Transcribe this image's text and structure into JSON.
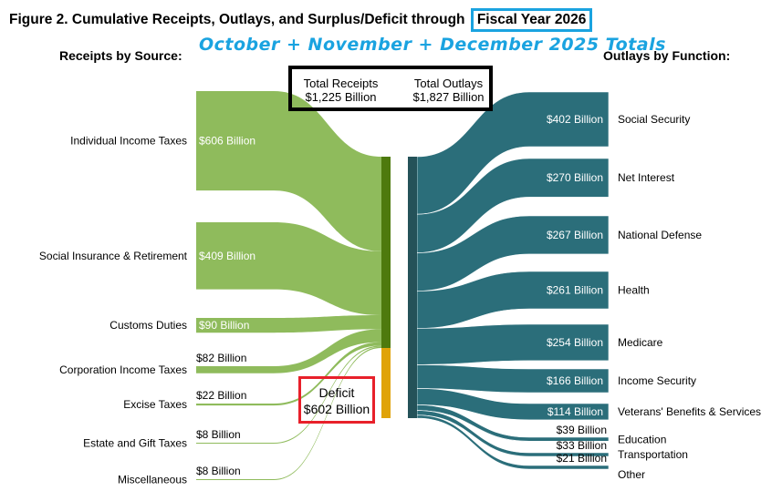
{
  "title": {
    "main": "Figure 2. Cumulative Receipts, Outlays, and Surplus/Deficit through",
    "highlight": "Fiscal Year 2026"
  },
  "subtitle": "October + November + December 2025 Totals",
  "receipts_heading": "Receipts by Source:",
  "outlays_heading": "Outlays by Function:",
  "totals": {
    "receipts_label": "Total Receipts",
    "receipts_value": "$1,225 Billion",
    "outlays_label": "Total Outlays",
    "outlays_value": "$1,827 Billion"
  },
  "deficit": {
    "label": "Deficit",
    "value": "$602 Billion"
  },
  "colors": {
    "receipts": "#8fbb5c",
    "receipts_bar": "#4e7a0e",
    "deficit": "#e0a30a",
    "outlays": "#2b6e7a",
    "outlays_bar": "#245259",
    "deficit_box": "#e8202a",
    "fy_box": "#1aa3e0"
  },
  "receipts": [
    {
      "name": "Individual Income Taxes",
      "value": 606,
      "label": "$606 Billion"
    },
    {
      "name": "Social Insurance & Retirement",
      "value": 409,
      "label": "$409 Billion"
    },
    {
      "name": "Customs Duties",
      "value": 90,
      "label": "$90 Billion"
    },
    {
      "name": "Corporation Income Taxes",
      "value": 82,
      "label": "$82 Billion"
    },
    {
      "name": "Excise Taxes",
      "value": 22,
      "label": "$22 Billion"
    },
    {
      "name": "Estate and Gift Taxes",
      "value": 8,
      "label": "$8 Billion"
    },
    {
      "name": "Miscellaneous",
      "value": 8,
      "label": "$8 Billion"
    }
  ],
  "outlays": [
    {
      "name": "Social Security",
      "value": 402,
      "label": "$402 Billion"
    },
    {
      "name": "Net Interest",
      "value": 270,
      "label": "$270 Billion"
    },
    {
      "name": "National Defense",
      "value": 267,
      "label": "$267 Billion"
    },
    {
      "name": "Health",
      "value": 261,
      "label": "$261 Billion"
    },
    {
      "name": "Medicare",
      "value": 254,
      "label": "$254 Billion"
    },
    {
      "name": "Income Security",
      "value": 166,
      "label": "$166 Billion"
    },
    {
      "name": "Veterans' Benefits & Services",
      "value": 114,
      "label": "$114 Billion"
    },
    {
      "name": "Education",
      "value": 39,
      "label": "$39 Billion"
    },
    {
      "name": "Transportation",
      "value": 33,
      "label": "$33 Billion"
    },
    {
      "name": "Other",
      "value": 21,
      "label": "$21 Billion"
    }
  ]
}
